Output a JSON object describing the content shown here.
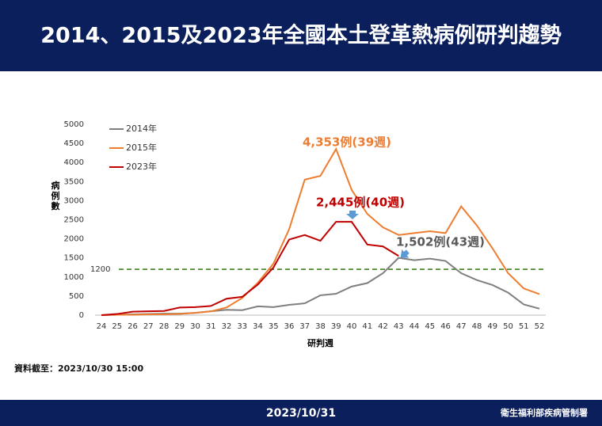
{
  "header": {
    "title": "2014、2015及2023年全國本土登革熱病例研判趨勢"
  },
  "chart_data": {
    "type": "line",
    "x": [
      24,
      25,
      26,
      27,
      28,
      29,
      30,
      31,
      32,
      33,
      34,
      35,
      36,
      37,
      38,
      39,
      40,
      41,
      42,
      43,
      44,
      45,
      46,
      47,
      48,
      49,
      50,
      51,
      52
    ],
    "xlim": [
      24,
      52
    ],
    "xticks": [
      24,
      25,
      26,
      27,
      28,
      29,
      30,
      31,
      32,
      33,
      34,
      35,
      36,
      37,
      38,
      39,
      40,
      41,
      42,
      43,
      44,
      45,
      46,
      47,
      48,
      49,
      50,
      51,
      52
    ],
    "ylim": [
      0,
      5000
    ],
    "yticks": [
      0,
      500,
      1000,
      1500,
      2000,
      2500,
      3000,
      3500,
      4000,
      4500,
      5000
    ],
    "x_label": "研判週",
    "y_label": "病例數",
    "series": [
      {
        "name": "2014年",
        "color": "#7f7f7f",
        "values": [
          0,
          10,
          20,
          30,
          40,
          40,
          60,
          100,
          140,
          130,
          230,
          210,
          270,
          310,
          520,
          560,
          750,
          840,
          1100,
          1502,
          1440,
          1480,
          1420,
          1100,
          920,
          790,
          590,
          280,
          170
        ]
      },
      {
        "name": "2015年",
        "color": "#ed7d31",
        "values": [
          0,
          10,
          10,
          20,
          20,
          30,
          60,
          100,
          200,
          450,
          850,
          1350,
          2250,
          3550,
          3650,
          4353,
          3280,
          2650,
          2300,
          2100,
          2150,
          2200,
          2150,
          2850,
          2350,
          1750,
          1100,
          700,
          550
        ]
      },
      {
        "name": "2023年",
        "color": "#c00000",
        "values": [
          0,
          30,
          90,
          100,
          110,
          200,
          210,
          240,
          430,
          480,
          800,
          1250,
          1980,
          2100,
          1950,
          2445,
          2445,
          1850,
          1800,
          1550,
          null,
          null,
          null,
          null,
          null,
          null,
          null,
          null,
          null
        ]
      }
    ],
    "threshold": {
      "value": 1200,
      "label": "1200",
      "color": "#4e8a2e"
    },
    "annotations": [
      {
        "text": "4,353例(39週)",
        "color": "#ed7d31"
      },
      {
        "text": "2,445例(40週)",
        "color": "#c00000"
      },
      {
        "text": "1,502例(43週)",
        "color": "#595959"
      }
    ]
  },
  "note": "資料截至：2023/10/30 15:00",
  "footer": {
    "date": "2023/10/31",
    "org": "衛生福利部疾病管制署"
  }
}
